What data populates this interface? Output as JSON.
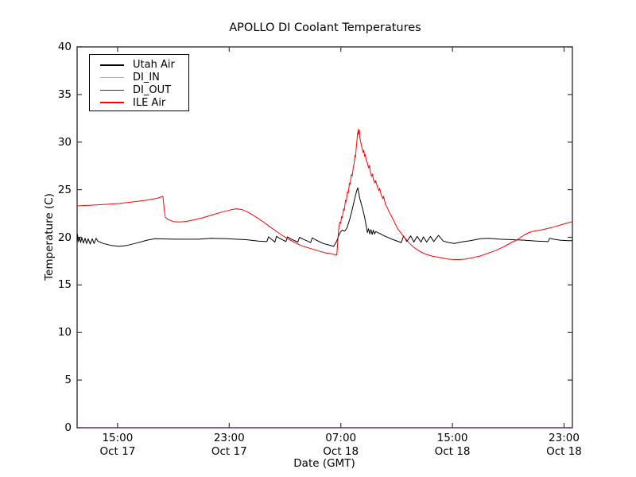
{
  "chart_data": {
    "type": "line",
    "title": "APOLLO DI Coolant Temperatures",
    "xlabel": "Date (GMT)",
    "ylabel": "Temperature (C)",
    "x_unit": "hours since Oct 17 00:00 GMT",
    "xlim": [
      12.1,
      47.6
    ],
    "ylim": [
      0,
      40
    ],
    "grid": false,
    "legend_position": "upper left",
    "frame_color": "#3a3333",
    "yticks": {
      "values": [
        0,
        5,
        10,
        15,
        20,
        25,
        30,
        35,
        40
      ],
      "labels": [
        "0",
        "5",
        "10",
        "15",
        "20",
        "25",
        "30",
        "35",
        "40"
      ]
    },
    "xticks": {
      "values": [
        15,
        23,
        31,
        39,
        47
      ],
      "labels": [
        [
          "15:00",
          "Oct 17"
        ],
        [
          "23:00",
          "Oct 17"
        ],
        [
          "07:00",
          "Oct 18"
        ],
        [
          "15:00",
          "Oct 18"
        ],
        [
          "23:00",
          "Oct 18"
        ]
      ]
    },
    "series": [
      {
        "name": "Utah Air",
        "color": "#000000",
        "points": [
          [
            12.1,
            19.5
          ],
          [
            12.13,
            20.3
          ],
          [
            12.19,
            19.55
          ],
          [
            12.27,
            20.0
          ],
          [
            12.35,
            19.45
          ],
          [
            12.44,
            19.95
          ],
          [
            12.55,
            19.4
          ],
          [
            12.67,
            19.9
          ],
          [
            12.78,
            19.35
          ],
          [
            12.89,
            19.85
          ],
          [
            13.04,
            19.3
          ],
          [
            13.18,
            19.85
          ],
          [
            13.32,
            19.35
          ],
          [
            13.46,
            19.9
          ],
          [
            13.58,
            19.6
          ],
          [
            13.98,
            19.35
          ],
          [
            14.54,
            19.15
          ],
          [
            15.11,
            19.05
          ],
          [
            15.68,
            19.15
          ],
          [
            16.37,
            19.4
          ],
          [
            17.11,
            19.7
          ],
          [
            17.68,
            19.85
          ],
          [
            19.1,
            19.8
          ],
          [
            20.81,
            19.8
          ],
          [
            21.66,
            19.9
          ],
          [
            22.8,
            19.85
          ],
          [
            24.22,
            19.75
          ],
          [
            25.08,
            19.6
          ],
          [
            25.7,
            19.55
          ],
          [
            25.82,
            20.05
          ],
          [
            26.27,
            19.5
          ],
          [
            26.39,
            20.1
          ],
          [
            26.61,
            19.9
          ],
          [
            27.07,
            19.55
          ],
          [
            27.18,
            20.05
          ],
          [
            27.47,
            19.8
          ],
          [
            27.92,
            19.5
          ],
          [
            28.04,
            20.0
          ],
          [
            28.32,
            19.8
          ],
          [
            28.84,
            19.45
          ],
          [
            28.95,
            19.95
          ],
          [
            29.18,
            19.75
          ],
          [
            29.75,
            19.35
          ],
          [
            30.14,
            19.2
          ],
          [
            30.49,
            19.05
          ],
          [
            30.71,
            19.6
          ],
          [
            30.88,
            20.3
          ],
          [
            31.0,
            20.6
          ],
          [
            31.11,
            20.75
          ],
          [
            31.28,
            20.65
          ],
          [
            31.45,
            21.0
          ],
          [
            31.62,
            21.8
          ],
          [
            31.8,
            22.8
          ],
          [
            31.97,
            23.9
          ],
          [
            32.14,
            24.9
          ],
          [
            32.22,
            25.2
          ],
          [
            32.36,
            24.1
          ],
          [
            32.53,
            23.2
          ],
          [
            32.71,
            22.1
          ],
          [
            32.82,
            21.2
          ],
          [
            32.91,
            20.5
          ],
          [
            32.99,
            20.9
          ],
          [
            33.08,
            20.35
          ],
          [
            33.16,
            20.8
          ],
          [
            33.25,
            20.3
          ],
          [
            33.33,
            20.75
          ],
          [
            33.42,
            20.35
          ],
          [
            33.51,
            20.6
          ],
          [
            34.19,
            20.1
          ],
          [
            34.76,
            19.75
          ],
          [
            35.33,
            19.45
          ],
          [
            35.5,
            20.15
          ],
          [
            35.73,
            19.55
          ],
          [
            36.01,
            20.15
          ],
          [
            36.24,
            19.5
          ],
          [
            36.47,
            20.1
          ],
          [
            36.75,
            19.5
          ],
          [
            36.92,
            20.05
          ],
          [
            37.15,
            19.5
          ],
          [
            37.43,
            20.1
          ],
          [
            37.66,
            19.55
          ],
          [
            38.0,
            20.2
          ],
          [
            38.35,
            19.6
          ],
          [
            38.74,
            19.45
          ],
          [
            39.14,
            19.35
          ],
          [
            39.6,
            19.5
          ],
          [
            40.28,
            19.65
          ],
          [
            41.02,
            19.85
          ],
          [
            41.59,
            19.9
          ],
          [
            42.44,
            19.8
          ],
          [
            43.3,
            19.75
          ],
          [
            44.15,
            19.7
          ],
          [
            45.01,
            19.6
          ],
          [
            45.86,
            19.55
          ],
          [
            45.97,
            19.9
          ],
          [
            46.26,
            19.8
          ],
          [
            46.71,
            19.7
          ],
          [
            47.28,
            19.65
          ],
          [
            47.6,
            19.65
          ]
        ]
      },
      {
        "name": "DI_IN",
        "color": "#ffa500",
        "points": [
          [
            12.1,
            0
          ],
          [
            47.6,
            0
          ]
        ]
      },
      {
        "name": "DI_OUT",
        "color": "#800080",
        "points": [
          [
            12.1,
            0
          ],
          [
            47.6,
            0
          ]
        ]
      },
      {
        "name": "ILE Air",
        "color": "#ff0000",
        "points": [
          [
            12.1,
            23.3
          ],
          [
            12.84,
            23.35
          ],
          [
            13.98,
            23.45
          ],
          [
            15.11,
            23.55
          ],
          [
            16.25,
            23.75
          ],
          [
            17.11,
            23.9
          ],
          [
            17.85,
            24.1
          ],
          [
            18.25,
            24.3
          ],
          [
            18.33,
            23.2
          ],
          [
            18.42,
            22.1
          ],
          [
            18.64,
            21.85
          ],
          [
            18.99,
            21.65
          ],
          [
            19.38,
            21.6
          ],
          [
            19.84,
            21.65
          ],
          [
            20.41,
            21.8
          ],
          [
            21.09,
            22.05
          ],
          [
            21.78,
            22.35
          ],
          [
            22.46,
            22.65
          ],
          [
            23.14,
            22.9
          ],
          [
            23.54,
            23.0
          ],
          [
            23.94,
            22.9
          ],
          [
            24.34,
            22.65
          ],
          [
            24.79,
            22.25
          ],
          [
            25.36,
            21.7
          ],
          [
            25.93,
            21.1
          ],
          [
            26.5,
            20.5
          ],
          [
            27.07,
            19.95
          ],
          [
            27.64,
            19.5
          ],
          [
            28.21,
            19.1
          ],
          [
            28.78,
            18.85
          ],
          [
            29.35,
            18.6
          ],
          [
            29.8,
            18.4
          ],
          [
            30.2,
            18.3
          ],
          [
            30.54,
            18.2
          ],
          [
            30.71,
            18.15
          ],
          [
            30.77,
            19.2
          ],
          [
            30.83,
            20.6
          ],
          [
            30.88,
            21.3
          ],
          [
            30.94,
            21.6
          ],
          [
            31.0,
            21.45
          ],
          [
            31.05,
            22.2
          ],
          [
            31.11,
            22.05
          ],
          [
            31.2,
            23.0
          ],
          [
            31.25,
            22.85
          ],
          [
            31.34,
            23.9
          ],
          [
            31.39,
            23.75
          ],
          [
            31.48,
            24.8
          ],
          [
            31.53,
            24.65
          ],
          [
            31.62,
            25.7
          ],
          [
            31.67,
            25.55
          ],
          [
            31.76,
            26.6
          ],
          [
            31.82,
            26.45
          ],
          [
            31.9,
            27.4
          ],
          [
            31.96,
            27.8
          ],
          [
            32.02,
            28.6
          ],
          [
            32.06,
            28.45
          ],
          [
            32.1,
            29.3
          ],
          [
            32.14,
            29.9
          ],
          [
            32.18,
            30.6
          ],
          [
            32.21,
            31.0
          ],
          [
            32.23,
            30.8
          ],
          [
            32.26,
            31.35
          ],
          [
            32.3,
            30.9
          ],
          [
            32.33,
            31.25
          ],
          [
            32.37,
            30.4
          ],
          [
            32.42,
            30.1
          ],
          [
            32.48,
            29.6
          ],
          [
            32.53,
            29.3
          ],
          [
            32.59,
            28.9
          ],
          [
            32.65,
            29.15
          ],
          [
            32.71,
            28.5
          ],
          [
            32.76,
            28.7
          ],
          [
            32.82,
            28.1
          ],
          [
            32.91,
            27.8
          ],
          [
            32.99,
            27.3
          ],
          [
            33.05,
            27.55
          ],
          [
            33.11,
            26.9
          ],
          [
            33.22,
            26.4
          ],
          [
            33.28,
            26.65
          ],
          [
            33.33,
            26.1
          ],
          [
            33.45,
            25.7
          ],
          [
            33.5,
            25.95
          ],
          [
            33.62,
            25.3
          ],
          [
            33.73,
            24.9
          ],
          [
            33.79,
            25.15
          ],
          [
            33.9,
            24.4
          ],
          [
            34.02,
            24.05
          ],
          [
            34.07,
            24.3
          ],
          [
            34.19,
            23.5
          ],
          [
            34.3,
            23.2
          ],
          [
            34.47,
            22.65
          ],
          [
            34.64,
            22.2
          ],
          [
            34.81,
            21.7
          ],
          [
            35.04,
            21.0
          ],
          [
            35.33,
            20.4
          ],
          [
            35.61,
            19.9
          ],
          [
            35.9,
            19.4
          ],
          [
            36.18,
            19.0
          ],
          [
            36.64,
            18.55
          ],
          [
            37.04,
            18.25
          ],
          [
            37.6,
            18.0
          ],
          [
            38.17,
            17.85
          ],
          [
            38.74,
            17.7
          ],
          [
            39.31,
            17.65
          ],
          [
            39.88,
            17.7
          ],
          [
            40.45,
            17.85
          ],
          [
            41.02,
            18.05
          ],
          [
            41.59,
            18.35
          ],
          [
            42.16,
            18.65
          ],
          [
            42.73,
            19.05
          ],
          [
            43.3,
            19.5
          ],
          [
            43.7,
            19.8
          ],
          [
            44.15,
            20.25
          ],
          [
            44.49,
            20.5
          ],
          [
            44.84,
            20.65
          ],
          [
            45.29,
            20.75
          ],
          [
            45.75,
            20.9
          ],
          [
            46.32,
            21.1
          ],
          [
            46.77,
            21.3
          ],
          [
            47.23,
            21.5
          ],
          [
            47.6,
            21.65
          ]
        ]
      }
    ]
  }
}
